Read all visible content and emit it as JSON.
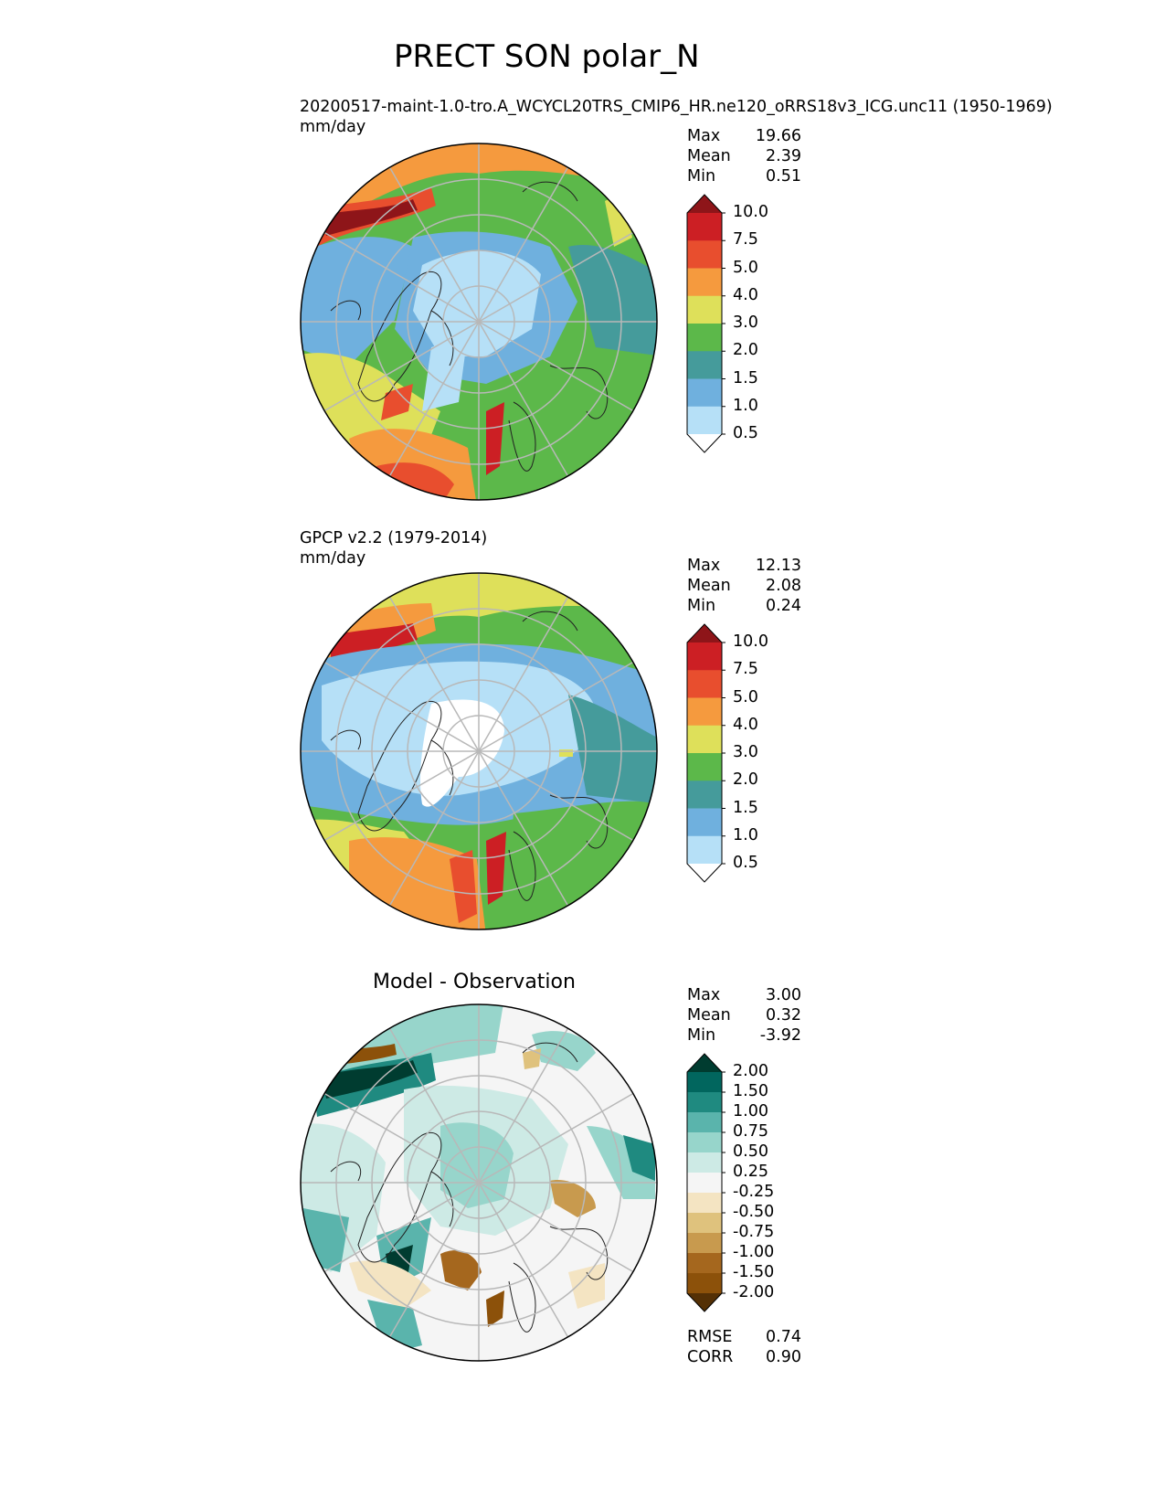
{
  "figure": {
    "title": "PRECT SON polar_N"
  },
  "panels": [
    {
      "id": "test",
      "subtitle": "20200517-maint-1.0-tro.A_WCYCL20TRS_CMIP6_HR.ne120_oRRS18v3_ICG.unc11 (1950-1969)",
      "units": "mm/day",
      "stats": [
        {
          "label": "Max",
          "value": "19.66"
        },
        {
          "label": "Mean",
          "value": "2.39"
        },
        {
          "label": "Min",
          "value": "0.51"
        }
      ],
      "colorbar": {
        "labels": [
          "10.0",
          "7.5",
          "5.0",
          "4.0",
          "3.0",
          "2.0",
          "1.5",
          "1.0",
          "0.5"
        ],
        "colors": [
          "#8e1519",
          "#cc1f24",
          "#e84e2e",
          "#f59a3e",
          "#dee05a",
          "#5cb84a",
          "#459b9b",
          "#6fb0de",
          "#b6e0f7",
          "#ffffff"
        ]
      }
    },
    {
      "id": "reference",
      "subtitle": "GPCP v2.2 (1979-2014)",
      "units": "mm/day",
      "stats": [
        {
          "label": "Max",
          "value": "12.13"
        },
        {
          "label": "Mean",
          "value": "2.08"
        },
        {
          "label": "Min",
          "value": "0.24"
        }
      ],
      "colorbar": {
        "labels": [
          "10.0",
          "7.5",
          "5.0",
          "4.0",
          "3.0",
          "2.0",
          "1.5",
          "1.0",
          "0.5"
        ],
        "colors": [
          "#8e1519",
          "#cc1f24",
          "#e84e2e",
          "#f59a3e",
          "#dee05a",
          "#5cb84a",
          "#459b9b",
          "#6fb0de",
          "#b6e0f7",
          "#ffffff"
        ]
      }
    },
    {
      "id": "difference",
      "title": "Model - Observation",
      "stats": [
        {
          "label": "Max",
          "value": "3.00"
        },
        {
          "label": "Mean",
          "value": "0.32"
        },
        {
          "label": "Min",
          "value": "-3.92"
        }
      ],
      "metrics": [
        {
          "label": "RMSE",
          "value": "0.74"
        },
        {
          "label": "CORR",
          "value": "0.90"
        }
      ],
      "colorbar": {
        "labels": [
          "2.00",
          "1.50",
          "1.00",
          "0.75",
          "0.50",
          "0.25",
          "-0.25",
          "-0.50",
          "-0.75",
          "-1.00",
          "-1.50",
          "-2.00"
        ],
        "colors": [
          "#003c30",
          "#01665e",
          "#1f8a80",
          "#5ab4ac",
          "#97d5cb",
          "#cdeae5",
          "#f5f5f5",
          "#f4e4c2",
          "#dfc27d",
          "#c89a4e",
          "#a5671e",
          "#8c510a",
          "#543005"
        ]
      }
    }
  ]
}
